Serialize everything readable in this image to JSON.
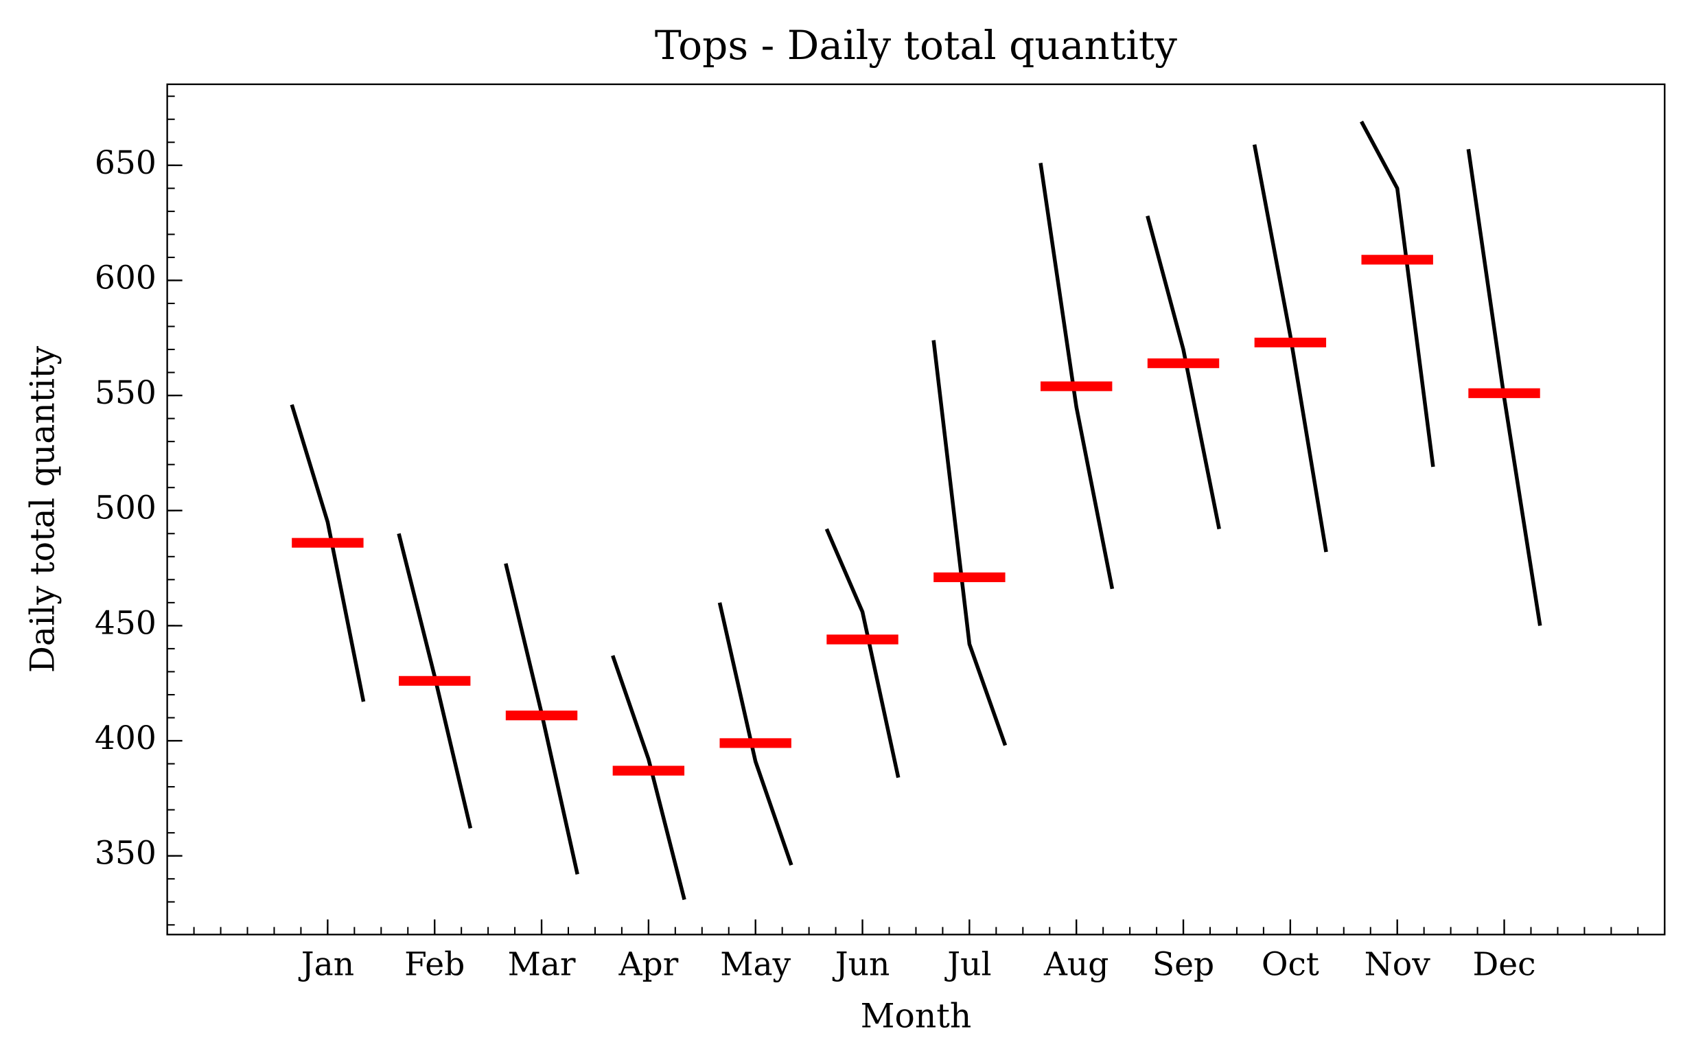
{
  "chart_data": {
    "type": "month_plot",
    "title": "Tops - Daily total quantity",
    "xlabel": "Month",
    "ylabel": "Daily total quantity",
    "categories": [
      "Jan",
      "Feb",
      "Mar",
      "Apr",
      "May",
      "Jun",
      "Jul",
      "Aug",
      "Sep",
      "Oct",
      "Nov",
      "Dec"
    ],
    "values": [
      [
        546,
        495,
        417
      ],
      [
        490,
        428,
        362
      ],
      [
        477,
        412,
        342
      ],
      [
        437,
        392,
        331
      ],
      [
        460,
        391,
        346
      ],
      [
        492,
        456,
        384
      ],
      [
        574,
        442,
        398
      ],
      [
        651,
        545,
        466
      ],
      [
        628,
        570,
        492
      ],
      [
        659,
        576,
        482
      ],
      [
        669,
        640,
        519
      ],
      [
        657,
        549,
        450
      ]
    ],
    "means": [
      486,
      426,
      411,
      387,
      399,
      444,
      471,
      554,
      564,
      573,
      609,
      551
    ],
    "line_color": "#000000",
    "mean_color": "#ff0000",
    "xlim": [
      -1.5,
      12.5
    ],
    "ylim": [
      315.8,
      685.2
    ],
    "yticks": [
      350,
      400,
      450,
      500,
      550,
      600,
      650
    ]
  }
}
